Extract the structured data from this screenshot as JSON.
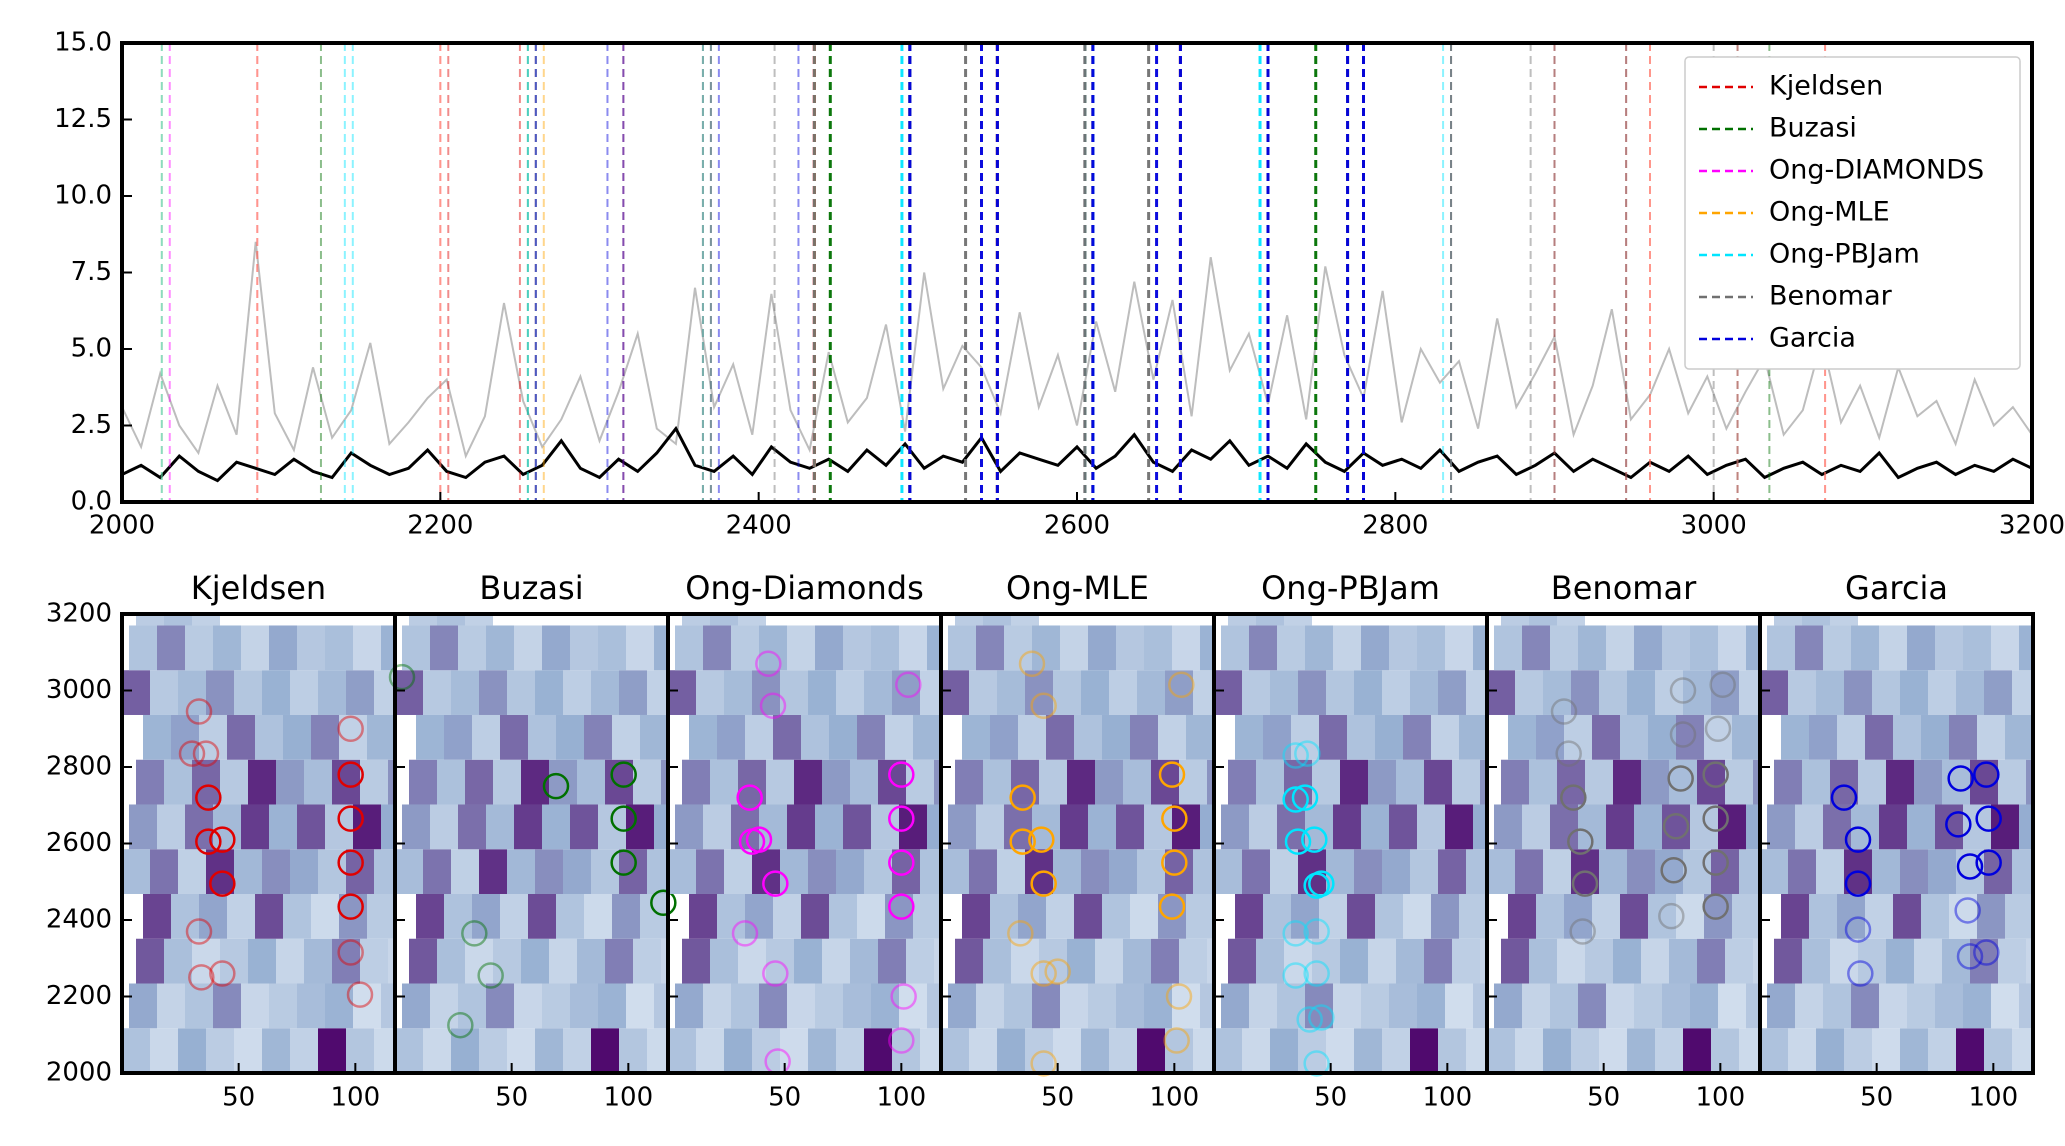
{
  "chart_data": [
    {
      "type": "line",
      "x": [
        2000,
        2012,
        2024,
        2036,
        2048,
        2060,
        2072,
        2084,
        2096,
        2108,
        2120,
        2132,
        2144,
        2156,
        2168,
        2180,
        2192,
        2204,
        2216,
        2228,
        2240,
        2252,
        2264,
        2276,
        2288,
        2300,
        2312,
        2324,
        2336,
        2348,
        2360,
        2372,
        2384,
        2396,
        2408,
        2420,
        2432,
        2444,
        2456,
        2468,
        2480,
        2492,
        2504,
        2516,
        2528,
        2540,
        2552,
        2564,
        2576,
        2588,
        2600,
        2612,
        2624,
        2636,
        2648,
        2660,
        2672,
        2684,
        2696,
        2708,
        2720,
        2732,
        2744,
        2756,
        2768,
        2780,
        2792,
        2804,
        2816,
        2828,
        2840,
        2852,
        2864,
        2876,
        2888,
        2900,
        2912,
        2924,
        2936,
        2948,
        2960,
        2972,
        2984,
        2996,
        3008,
        3020,
        3032,
        3044,
        3056,
        3068,
        3080,
        3092,
        3104,
        3116,
        3128,
        3140,
        3152,
        3164,
        3176,
        3188,
        3200
      ],
      "series": [
        {
          "color": "#bdbdbd",
          "values": [
            3.1,
            1.8,
            4.2,
            2.5,
            1.6,
            3.8,
            2.2,
            8.5,
            2.9,
            1.7,
            4.4,
            2.1,
            3.0,
            5.2,
            1.9,
            2.6,
            3.4,
            4.0,
            1.5,
            2.8,
            6.5,
            3.3,
            1.8,
            2.7,
            4.1,
            2.0,
            3.6,
            5.5,
            2.4,
            1.9,
            7.0,
            3.1,
            4.5,
            2.2,
            6.8,
            3.0,
            1.7,
            4.9,
            2.6,
            3.4,
            5.8,
            2.3,
            7.5,
            3.7,
            5.1,
            4.4,
            2.9,
            6.2,
            3.1,
            4.8,
            2.5,
            5.9,
            3.6,
            7.2,
            4.0,
            6.6,
            2.8,
            8.0,
            4.3,
            5.5,
            3.2,
            6.1,
            2.7,
            7.7,
            4.8,
            3.4,
            6.9,
            2.6,
            5.0,
            3.9,
            4.6,
            2.4,
            6.0,
            3.1,
            4.2,
            5.4,
            2.2,
            3.8,
            6.3,
            2.7,
            3.5,
            5.0,
            2.9,
            4.1,
            2.4,
            3.6,
            4.7,
            2.2,
            3.0,
            5.3,
            2.6,
            3.8,
            2.1,
            4.4,
            2.8,
            3.3,
            1.9,
            4.0,
            2.5,
            3.1,
            2.2
          ]
        },
        {
          "color": "#000000",
          "values": [
            0.9,
            1.2,
            0.8,
            1.5,
            1.0,
            0.7,
            1.3,
            1.1,
            0.9,
            1.4,
            1.0,
            0.8,
            1.6,
            1.2,
            0.9,
            1.1,
            1.7,
            1.0,
            0.8,
            1.3,
            1.5,
            0.9,
            1.2,
            2.0,
            1.1,
            0.8,
            1.4,
            1.0,
            1.6,
            2.4,
            1.2,
            1.0,
            1.5,
            0.9,
            1.8,
            1.3,
            1.1,
            1.4,
            1.0,
            1.7,
            1.2,
            1.9,
            1.1,
            1.5,
            1.3,
            2.1,
            1.0,
            1.6,
            1.4,
            1.2,
            1.8,
            1.1,
            1.5,
            2.2,
            1.3,
            1.0,
            1.7,
            1.4,
            2.0,
            1.2,
            1.5,
            1.1,
            1.9,
            1.3,
            1.0,
            1.6,
            1.2,
            1.4,
            1.1,
            1.7,
            1.0,
            1.3,
            1.5,
            0.9,
            1.2,
            1.6,
            1.0,
            1.4,
            1.1,
            0.8,
            1.3,
            1.0,
            1.5,
            0.9,
            1.2,
            1.4,
            0.8,
            1.1,
            1.3,
            0.9,
            1.2,
            1.0,
            1.6,
            0.8,
            1.1,
            1.3,
            0.9,
            1.2,
            1.0,
            1.4,
            1.1
          ]
        }
      ],
      "methods": [
        {
          "name": "Kjeldsen",
          "color": "#e00000",
          "frequencies": [
            2250,
            2260,
            2205,
            2315,
            2370,
            2435,
            2495,
            2550,
            2605,
            2610,
            2665,
            2720,
            2780,
            2835,
            2835,
            2900,
            2945
          ]
        },
        {
          "name": "Buzasi",
          "color": "#007000",
          "frequencies": [
            2125,
            2255,
            2365,
            2445,
            2550,
            2665,
            2750,
            2780,
            3035
          ]
        },
        {
          "name": "Ong-DIAMONDS",
          "color": "#ff00ff",
          "frequencies": [
            2030,
            2085,
            2200,
            2260,
            2365,
            2435,
            2495,
            2550,
            2605,
            2610,
            2665,
            2720,
            2780,
            2960,
            3015,
            3070
          ]
        },
        {
          "name": "Ong-MLE",
          "color": "#ffa500",
          "frequencies": [
            2025,
            2085,
            2200,
            2260,
            2265,
            2365,
            2435,
            2495,
            2550,
            2605,
            2610,
            2665,
            2720,
            2780,
            2960,
            3015,
            3070
          ]
        },
        {
          "name": "Ong-PBJam",
          "color": "#00e5ff",
          "frequencies": [
            2025,
            2140,
            2145,
            2255,
            2260,
            2365,
            2370,
            2490,
            2495,
            2605,
            2610,
            2715,
            2720,
            2830,
            2835
          ]
        },
        {
          "name": "Benomar",
          "color": "#707070",
          "frequencies": [
            2370,
            2410,
            2435,
            2495,
            2530,
            2550,
            2605,
            2645,
            2665,
            2720,
            2770,
            2780,
            2835,
            2885,
            2900,
            2945,
            3000,
            3015
          ]
        },
        {
          "name": "Garcia",
          "color": "#0000dd",
          "frequencies": [
            2260,
            2305,
            2315,
            2375,
            2425,
            2495,
            2540,
            2550,
            2610,
            2650,
            2665,
            2720,
            2770,
            2780
          ]
        }
      ],
      "xlim": [
        2000,
        3200
      ],
      "xticks": [
        2000,
        2200,
        2400,
        2600,
        2800,
        3000,
        3200
      ],
      "ylim": [
        0,
        15
      ],
      "yticks": [
        {
          "value": 0,
          "label": "0.0"
        },
        2.5,
        {
          "value": 5,
          "label": "5.0"
        },
        7.5,
        {
          "value": 10,
          "label": "10.0"
        },
        12.5,
        {
          "value": 15,
          "label": "15.0"
        }
      ],
      "legend": "upper right"
    },
    {
      "type": "echelle",
      "xlim": [
        0,
        117
      ],
      "xticks": [
        50,
        100
      ],
      "ylim": [
        2000,
        3200
      ],
      "yticks": [
        2000,
        2200,
        2400,
        2600,
        2800,
        3000,
        3200
      ],
      "panels": [
        {
          "title": "Kjeldsen",
          "mod": [
            34,
            43,
            102,
            98,
            33,
            98,
            43,
            98,
            37,
            43,
            98,
            37,
            98,
            30,
            36,
            98,
            33
          ]
        },
        {
          "title": "Buzasi",
          "mod": [
            28,
            41,
            34,
            115,
            98,
            98,
            69,
            98,
            3
          ]
        },
        {
          "title": "Ong-Diamonds",
          "mod": [
            47,
            100,
            101,
            46,
            33,
            100,
            46,
            100,
            36,
            39,
            100,
            35,
            100,
            45,
            103,
            43
          ]
        },
        {
          "title": "Ong-MLE",
          "mod": [
            44,
            101,
            102,
            44,
            50,
            34,
            99,
            44,
            100,
            35,
            43,
            100,
            35,
            99,
            44,
            103,
            39
          ]
        },
        {
          "title": "Ong-PBJam",
          "mod": [
            44,
            41,
            46,
            35,
            44,
            35,
            44,
            44,
            46,
            36,
            43,
            35,
            39,
            35,
            40
          ]
        },
        {
          "title": "Benomar",
          "mod": [
            41,
            79,
            98,
            42,
            80,
            98,
            40,
            81,
            98,
            37,
            83,
            98,
            35,
            84,
            99,
            33,
            84,
            101
          ]
        },
        {
          "title": "Garcia",
          "mod": [
            43,
            90,
            97,
            42,
            89,
            42,
            90,
            98,
            42,
            85,
            98,
            36,
            86,
            97
          ]
        }
      ]
    }
  ]
}
